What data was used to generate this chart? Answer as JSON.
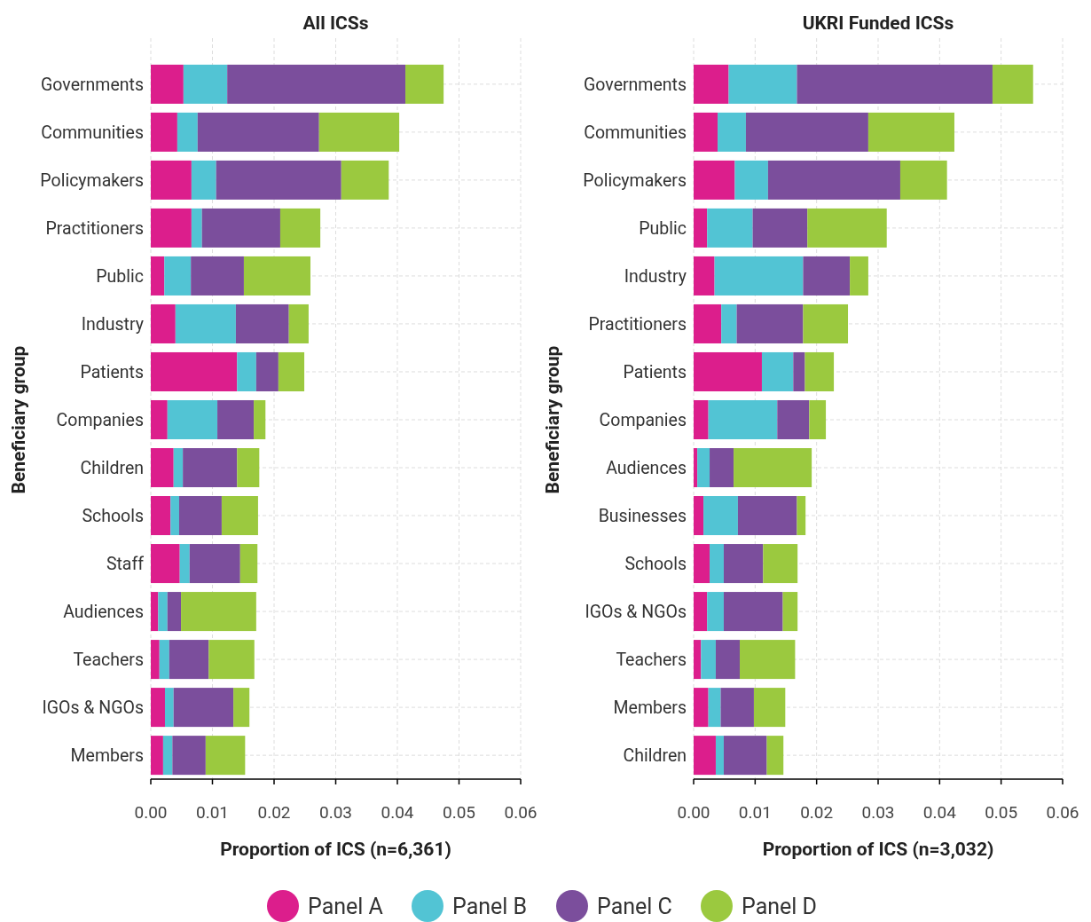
{
  "chart_data": [
    {
      "type": "bar",
      "orientation": "horizontal",
      "stacked": true,
      "title": "All ICSs",
      "xlabel": "Proportion of ICS (n=6,361)",
      "ylabel": "Beneficiary group",
      "categories": [
        "Governments",
        "Communities",
        "Policymakers",
        "Practitioners",
        "Public",
        "Industry",
        "Patients",
        "Companies",
        "Children",
        "Schools",
        "Staff",
        "Audiences",
        "Teachers",
        "IGOs & NGOs",
        "Members"
      ],
      "xlim": [
        0,
        0.06
      ],
      "xticks": [
        {
          "value": 0,
          "label": "0.00"
        },
        {
          "value": 0.01,
          "label": "0.01"
        },
        {
          "value": 0.02,
          "label": "0.02"
        },
        {
          "value": 0.03,
          "label": "0.03"
        },
        {
          "value": 0.04,
          "label": "0.04"
        },
        {
          "value": 0.05,
          "label": "0.05"
        },
        {
          "value": 0.06,
          "label": "0.06"
        }
      ],
      "grid": true,
      "legend": "bottom",
      "series": [
        {
          "name": "Panel A",
          "color": "#dc1e8c",
          "values": [
            0.0053,
            0.0043,
            0.0066,
            0.0066,
            0.0022,
            0.004,
            0.014,
            0.0027,
            0.0037,
            0.0032,
            0.0047,
            0.0012,
            0.0014,
            0.0023,
            0.002
          ]
        },
        {
          "name": "Panel B",
          "color": "#52c4d4",
          "values": [
            0.0071,
            0.0033,
            0.004,
            0.0017,
            0.0043,
            0.0098,
            0.0031,
            0.0081,
            0.0015,
            0.0014,
            0.0016,
            0.0015,
            0.0016,
            0.0014,
            0.0015
          ]
        },
        {
          "name": "Panel C",
          "color": "#7b4e9c",
          "values": [
            0.0289,
            0.0197,
            0.0203,
            0.0127,
            0.0086,
            0.0086,
            0.0036,
            0.0059,
            0.0088,
            0.0069,
            0.0082,
            0.0022,
            0.0064,
            0.0097,
            0.0054
          ]
        },
        {
          "name": "Panel D",
          "color": "#9bc93f",
          "values": [
            0.0062,
            0.013,
            0.0077,
            0.0065,
            0.0108,
            0.0032,
            0.0042,
            0.0019,
            0.0036,
            0.0059,
            0.0028,
            0.0122,
            0.0074,
            0.0026,
            0.0064
          ]
        }
      ]
    },
    {
      "type": "bar",
      "orientation": "horizontal",
      "stacked": true,
      "title": "UKRI Funded ICSs",
      "xlabel": "Proportion of ICS (n=3,032)",
      "ylabel": "Beneficiary group",
      "categories": [
        "Governments",
        "Communities",
        "Policymakers",
        "Public",
        "Industry",
        "Practitioners",
        "Patients",
        "Companies",
        "Audiences",
        "Businesses",
        "Schools",
        "IGOs & NGOs",
        "Teachers",
        "Members",
        "Children"
      ],
      "xlim": [
        0,
        0.06
      ],
      "xticks": [
        {
          "value": 0,
          "label": "0.00"
        },
        {
          "value": 0.01,
          "label": "0.01"
        },
        {
          "value": 0.02,
          "label": "0.02"
        },
        {
          "value": 0.03,
          "label": "0.03"
        },
        {
          "value": 0.04,
          "label": "0.04"
        },
        {
          "value": 0.05,
          "label": "0.05"
        },
        {
          "value": 0.06,
          "label": "0.06"
        }
      ],
      "grid": true,
      "series": [
        {
          "color": "#dc1e8c",
          "values": [
            0.0057,
            0.0039,
            0.0067,
            0.0022,
            0.0034,
            0.0045,
            0.0111,
            0.0024,
            0.0006,
            0.0016,
            0.0026,
            0.0022,
            0.0012,
            0.0024,
            0.0036
          ]
        },
        {
          "color": "#52c4d4",
          "values": [
            0.0111,
            0.0046,
            0.0054,
            0.0074,
            0.0144,
            0.0025,
            0.0051,
            0.0112,
            0.002,
            0.0056,
            0.0023,
            0.0027,
            0.0024,
            0.002,
            0.0013
          ]
        },
        {
          "color": "#7b4e9c",
          "values": [
            0.0318,
            0.0199,
            0.0215,
            0.0089,
            0.0076,
            0.0108,
            0.0019,
            0.0052,
            0.0039,
            0.0096,
            0.0064,
            0.0096,
            0.0039,
            0.0054,
            0.007
          ]
        },
        {
          "color": "#9bc93f",
          "values": [
            0.0066,
            0.014,
            0.0076,
            0.0129,
            0.003,
            0.0073,
            0.0047,
            0.0027,
            0.0127,
            0.0014,
            0.0056,
            0.0024,
            0.009,
            0.0051,
            0.0027
          ]
        }
      ]
    }
  ]
}
